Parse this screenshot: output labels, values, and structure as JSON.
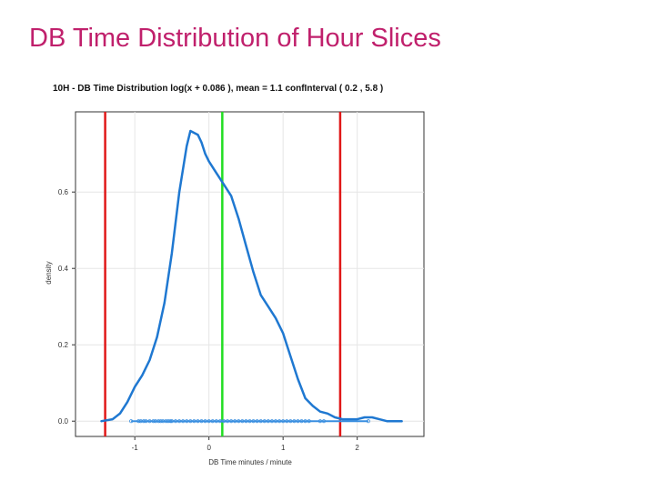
{
  "slide": {
    "title": "DB Time Distribution of Hour Slices",
    "title_color": "#c0206c"
  },
  "chart_data": {
    "type": "line",
    "title": "10H - DB Time Distribution log(x +  0.086 ), mean = 1.1 confInterval ( 0.2 , 5.8 )",
    "xlabel": "DB Time minutes / minute",
    "ylabel": "density",
    "xlim": [
      -1.8,
      2.9
    ],
    "ylim": [
      -0.04,
      0.81
    ],
    "x_ticks": [
      {
        "value": -1,
        "label": "-1"
      },
      {
        "value": 0,
        "label": "0"
      },
      {
        "value": 1,
        "label": "1"
      },
      {
        "value": 2,
        "label": "2"
      }
    ],
    "y_ticks": [
      {
        "value": 0.0,
        "label": "0.0"
      },
      {
        "value": 0.2,
        "label": "0.2"
      },
      {
        "value": 0.4,
        "label": "0.4"
      },
      {
        "value": 0.6,
        "label": "0.6"
      }
    ],
    "grid": true,
    "series": [
      {
        "color": "#1f78d1",
        "x": [
          -1.45,
          -1.3,
          -1.2,
          -1.1,
          -1.0,
          -0.9,
          -0.8,
          -0.7,
          -0.6,
          -0.5,
          -0.4,
          -0.3,
          -0.25,
          -0.15,
          -0.1,
          -0.05,
          0.0,
          0.1,
          0.2,
          0.3,
          0.4,
          0.5,
          0.6,
          0.7,
          0.8,
          0.9,
          1.0,
          1.1,
          1.2,
          1.3,
          1.4,
          1.5,
          1.6,
          1.7,
          1.8,
          1.9,
          2.0,
          2.1,
          2.2,
          2.3,
          2.4,
          2.6
        ],
        "y": [
          0.0,
          0.005,
          0.02,
          0.05,
          0.09,
          0.12,
          0.16,
          0.22,
          0.31,
          0.44,
          0.6,
          0.72,
          0.76,
          0.75,
          0.73,
          0.7,
          0.68,
          0.65,
          0.62,
          0.59,
          0.53,
          0.46,
          0.39,
          0.33,
          0.3,
          0.27,
          0.23,
          0.17,
          0.11,
          0.06,
          0.04,
          0.025,
          0.02,
          0.01,
          0.005,
          0.005,
          0.005,
          0.01,
          0.01,
          0.005,
          0.0,
          0.0
        ]
      }
    ],
    "rug": {
      "color": "#3a8fe0",
      "x": [
        -1.05,
        -0.95,
        -0.92,
        -0.88,
        -0.85,
        -0.8,
        -0.75,
        -0.72,
        -0.68,
        -0.65,
        -0.62,
        -0.58,
        -0.55,
        -0.52,
        -0.5,
        -0.45,
        -0.4,
        -0.35,
        -0.3,
        -0.25,
        -0.2,
        -0.15,
        -0.1,
        -0.05,
        0.0,
        0.05,
        0.1,
        0.15,
        0.2,
        0.25,
        0.3,
        0.35,
        0.4,
        0.45,
        0.5,
        0.55,
        0.6,
        0.65,
        0.7,
        0.75,
        0.8,
        0.85,
        0.9,
        0.95,
        1.0,
        1.05,
        1.1,
        1.15,
        1.2,
        1.25,
        1.3,
        1.35,
        1.5,
        1.55,
        2.15
      ]
    },
    "vlines": [
      {
        "x": -1.4,
        "color": "#e01818"
      },
      {
        "x": 0.18,
        "color": "#22dd22"
      },
      {
        "x": 1.77,
        "color": "#e01818"
      }
    ]
  }
}
